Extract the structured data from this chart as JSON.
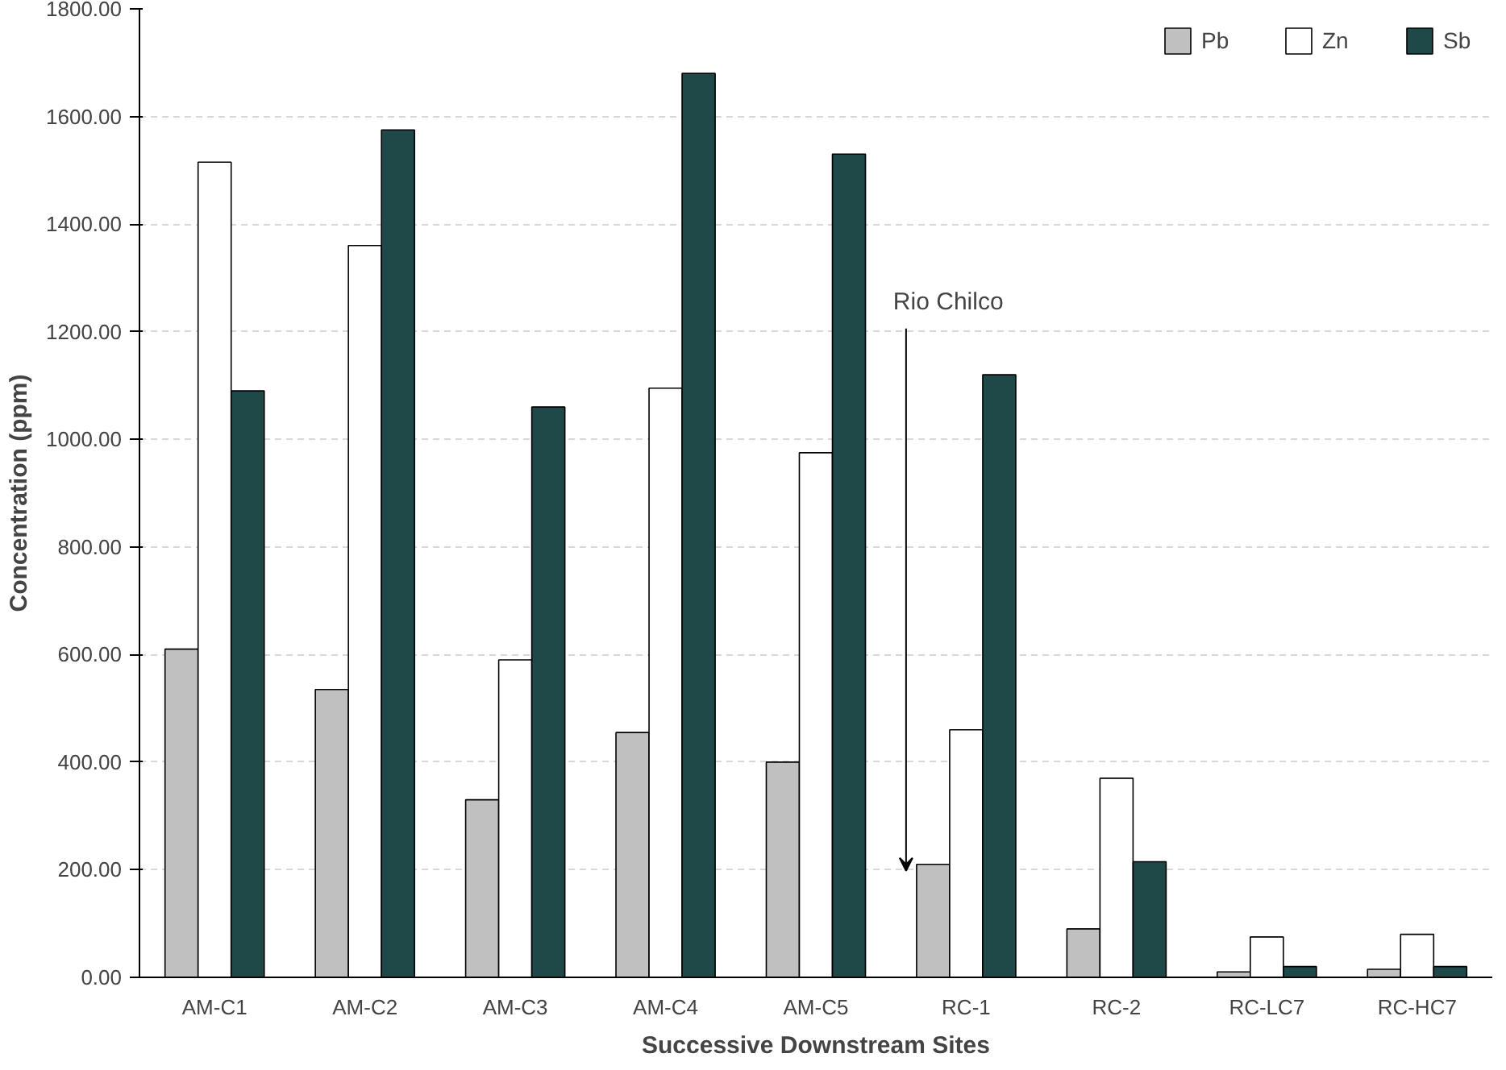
{
  "chart_data": {
    "type": "bar",
    "xlabel": "Successive Downstream Sites",
    "ylabel": "Concentration (ppm)",
    "categories": [
      "AM-C1",
      "AM-C2",
      "AM-C3",
      "AM-C4",
      "AM-C5",
      "RC-1",
      "RC-2",
      "RC-LC7",
      "RC-HC7"
    ],
    "series": [
      {
        "name": "Pb",
        "color": "#c0c0c0",
        "values": [
          610,
          535,
          330,
          455,
          400,
          210,
          90,
          10,
          15
        ]
      },
      {
        "name": "Zn",
        "color": "#ffffff",
        "values": [
          1515,
          1360,
          590,
          1095,
          975,
          460,
          370,
          75,
          80
        ]
      },
      {
        "name": "Sb",
        "color": "#1f4848",
        "values": [
          1090,
          1575,
          1060,
          1680,
          1530,
          1120,
          215,
          20,
          20
        ]
      }
    ],
    "ylim": [
      0,
      1800
    ],
    "yticks": [
      {
        "value": 0,
        "label": "0.00"
      },
      {
        "value": 200,
        "label": "200.00"
      },
      {
        "value": 400,
        "label": "400.00"
      },
      {
        "value": 600,
        "label": "600.00"
      },
      {
        "value": 800,
        "label": "800.00"
      },
      {
        "value": 1000,
        "label": "1000.00"
      },
      {
        "value": 1200,
        "label": "1200.00"
      },
      {
        "value": 1400,
        "label": "1400.00"
      },
      {
        "value": 1600,
        "label": "1600.00"
      },
      {
        "value": 1800,
        "label": "1800.00"
      }
    ],
    "annotations": [
      "Rio Chilco"
    ],
    "grid": "y",
    "legend": "top right"
  }
}
